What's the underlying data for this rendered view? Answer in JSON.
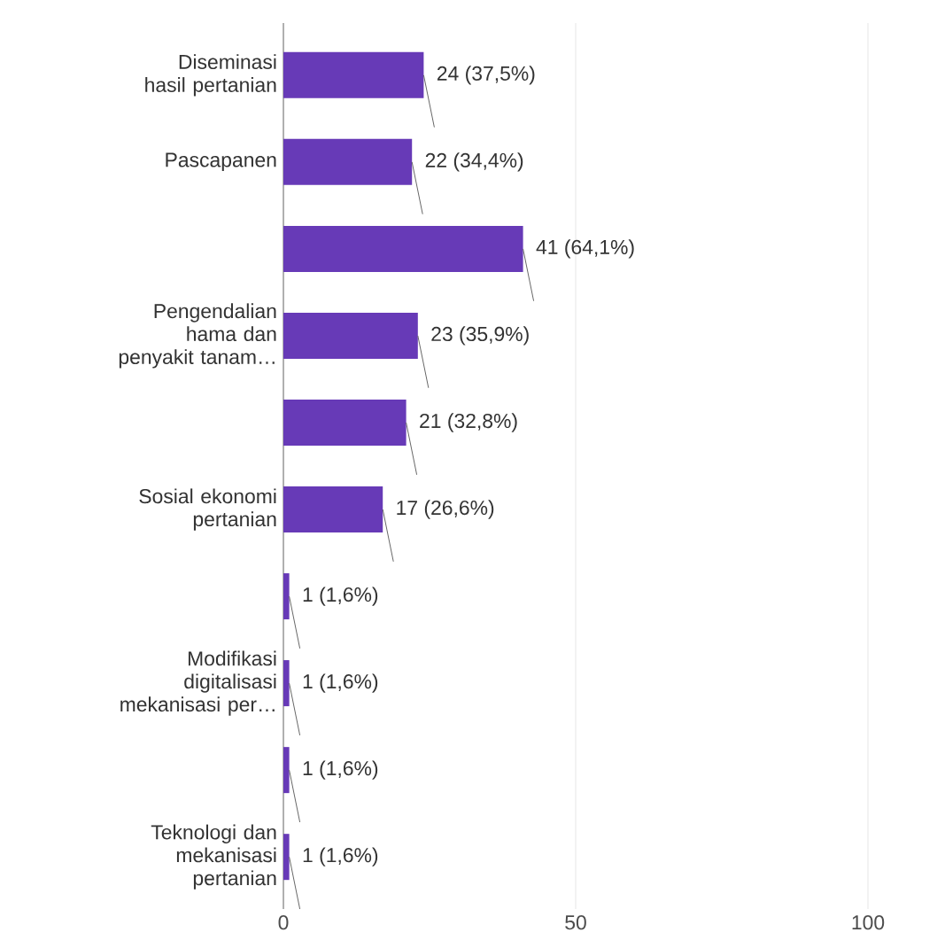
{
  "chart_data": {
    "type": "bar",
    "orientation": "horizontal",
    "categories": [
      "Diseminasi hasil pertanian",
      "Pascapanen",
      null,
      "Pengendalian hama dan penyakit tanam…",
      null,
      "Sosial ekonomi pertanian",
      null,
      "Modifikasi digitalisasi mekanisasi per…",
      null,
      "Teknologi dan mekanisasi pertanian"
    ],
    "values": [
      24,
      22,
      41,
      23,
      21,
      17,
      1,
      1,
      1,
      1
    ],
    "value_labels": [
      "24 (37,5%)",
      "22 (34,4%)",
      "41 (64,1%)",
      "23 (35,9%)",
      "21 (32,8%)",
      "17 (26,6%)",
      "1 (1,6%)",
      "1 (1,6%)",
      "1 (1,6%)",
      "1 (1,6%)"
    ],
    "color": "#673ab7",
    "xlim": [
      0,
      100
    ],
    "xticks": [
      0,
      50,
      100
    ],
    "grid": "x"
  }
}
